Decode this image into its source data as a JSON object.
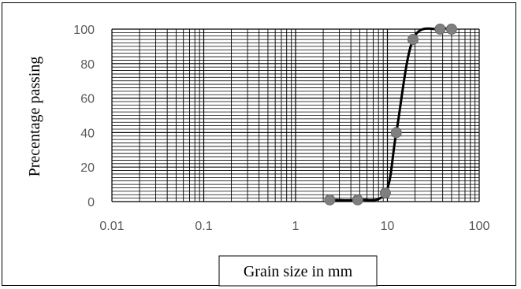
{
  "chart_data": {
    "type": "scatter",
    "title": "",
    "xlabel": "Grain size in mm",
    "ylabel": "Precentage passing",
    "x_scale": "log",
    "xlim": [
      0.01,
      100
    ],
    "ylim": [
      0,
      100
    ],
    "x_ticks": [
      "0.01",
      "0.1",
      "1",
      "10",
      "100"
    ],
    "y_ticks": [
      "0",
      "20",
      "40",
      "60",
      "80",
      "100"
    ],
    "y_minor_step": 2,
    "grid": true,
    "smooth_line": true,
    "colors": {
      "marker": "#7f7f7f",
      "line": "#000000",
      "grid": "#000000"
    },
    "points": [
      {
        "x": 2.36,
        "y": 1
      },
      {
        "x": 4.75,
        "y": 1
      },
      {
        "x": 9.5,
        "y": 5
      },
      {
        "x": 12.5,
        "y": 40
      },
      {
        "x": 19,
        "y": 94
      },
      {
        "x": 37.5,
        "y": 100
      },
      {
        "x": 50,
        "y": 100
      }
    ]
  }
}
